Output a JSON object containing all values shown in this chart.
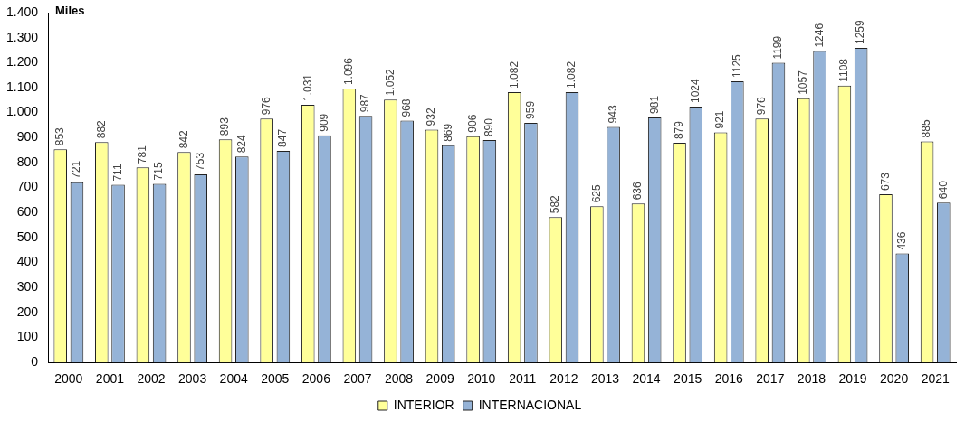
{
  "chart_data": {
    "type": "bar",
    "ylabel": "Miles",
    "categories": [
      "2000",
      "2001",
      "2002",
      "2003",
      "2004",
      "2005",
      "2006",
      "2007",
      "2008",
      "2009",
      "2010",
      "2011",
      "2012",
      "2013",
      "2014",
      "2015",
      "2016",
      "2017",
      "2018",
      "2019",
      "2020",
      "2021"
    ],
    "series": [
      {
        "name": "INTERIOR",
        "color": "#ffff99",
        "values": [
          853,
          882,
          781,
          842,
          893,
          976,
          1031,
          1096,
          1052,
          932,
          906,
          1082,
          582,
          625,
          636,
          879,
          921,
          976,
          1057,
          1108,
          673,
          885
        ],
        "value_labels": [
          "853",
          "882",
          "781",
          "842",
          "893",
          "976",
          "1.031",
          "1.096",
          "1.052",
          "932",
          "906",
          "1.082",
          "582",
          "625",
          "636",
          "879",
          "921",
          "976",
          "1057",
          "1108",
          "673",
          "885"
        ]
      },
      {
        "name": "INTERNACIONAL",
        "color": "#95b3d7",
        "values": [
          721,
          711,
          715,
          753,
          824,
          847,
          909,
          987,
          968,
          869,
          890,
          959,
          1082,
          943,
          981,
          1024,
          1125,
          1199,
          1246,
          1259,
          436,
          640
        ],
        "value_labels": [
          "721",
          "711",
          "715",
          "753",
          "824",
          "847",
          "909",
          "987",
          "968",
          "869",
          "890",
          "959",
          "1.082",
          "943",
          "981",
          "1024",
          "1125",
          "1199",
          "1246",
          "1259",
          "436",
          "640"
        ]
      }
    ],
    "ylim": [
      0,
      1400
    ],
    "yticks": [
      0,
      100,
      200,
      300,
      400,
      500,
      600,
      700,
      800,
      900,
      {
        "value": 1000,
        "label": "1.000"
      },
      {
        "value": 1100,
        "label": "1.100"
      },
      {
        "value": 1200,
        "label": "1.200"
      },
      {
        "value": 1300,
        "label": "1.300"
      },
      {
        "value": 1400,
        "label": "1.400"
      }
    ],
    "grid": false,
    "legend": "bottom"
  }
}
